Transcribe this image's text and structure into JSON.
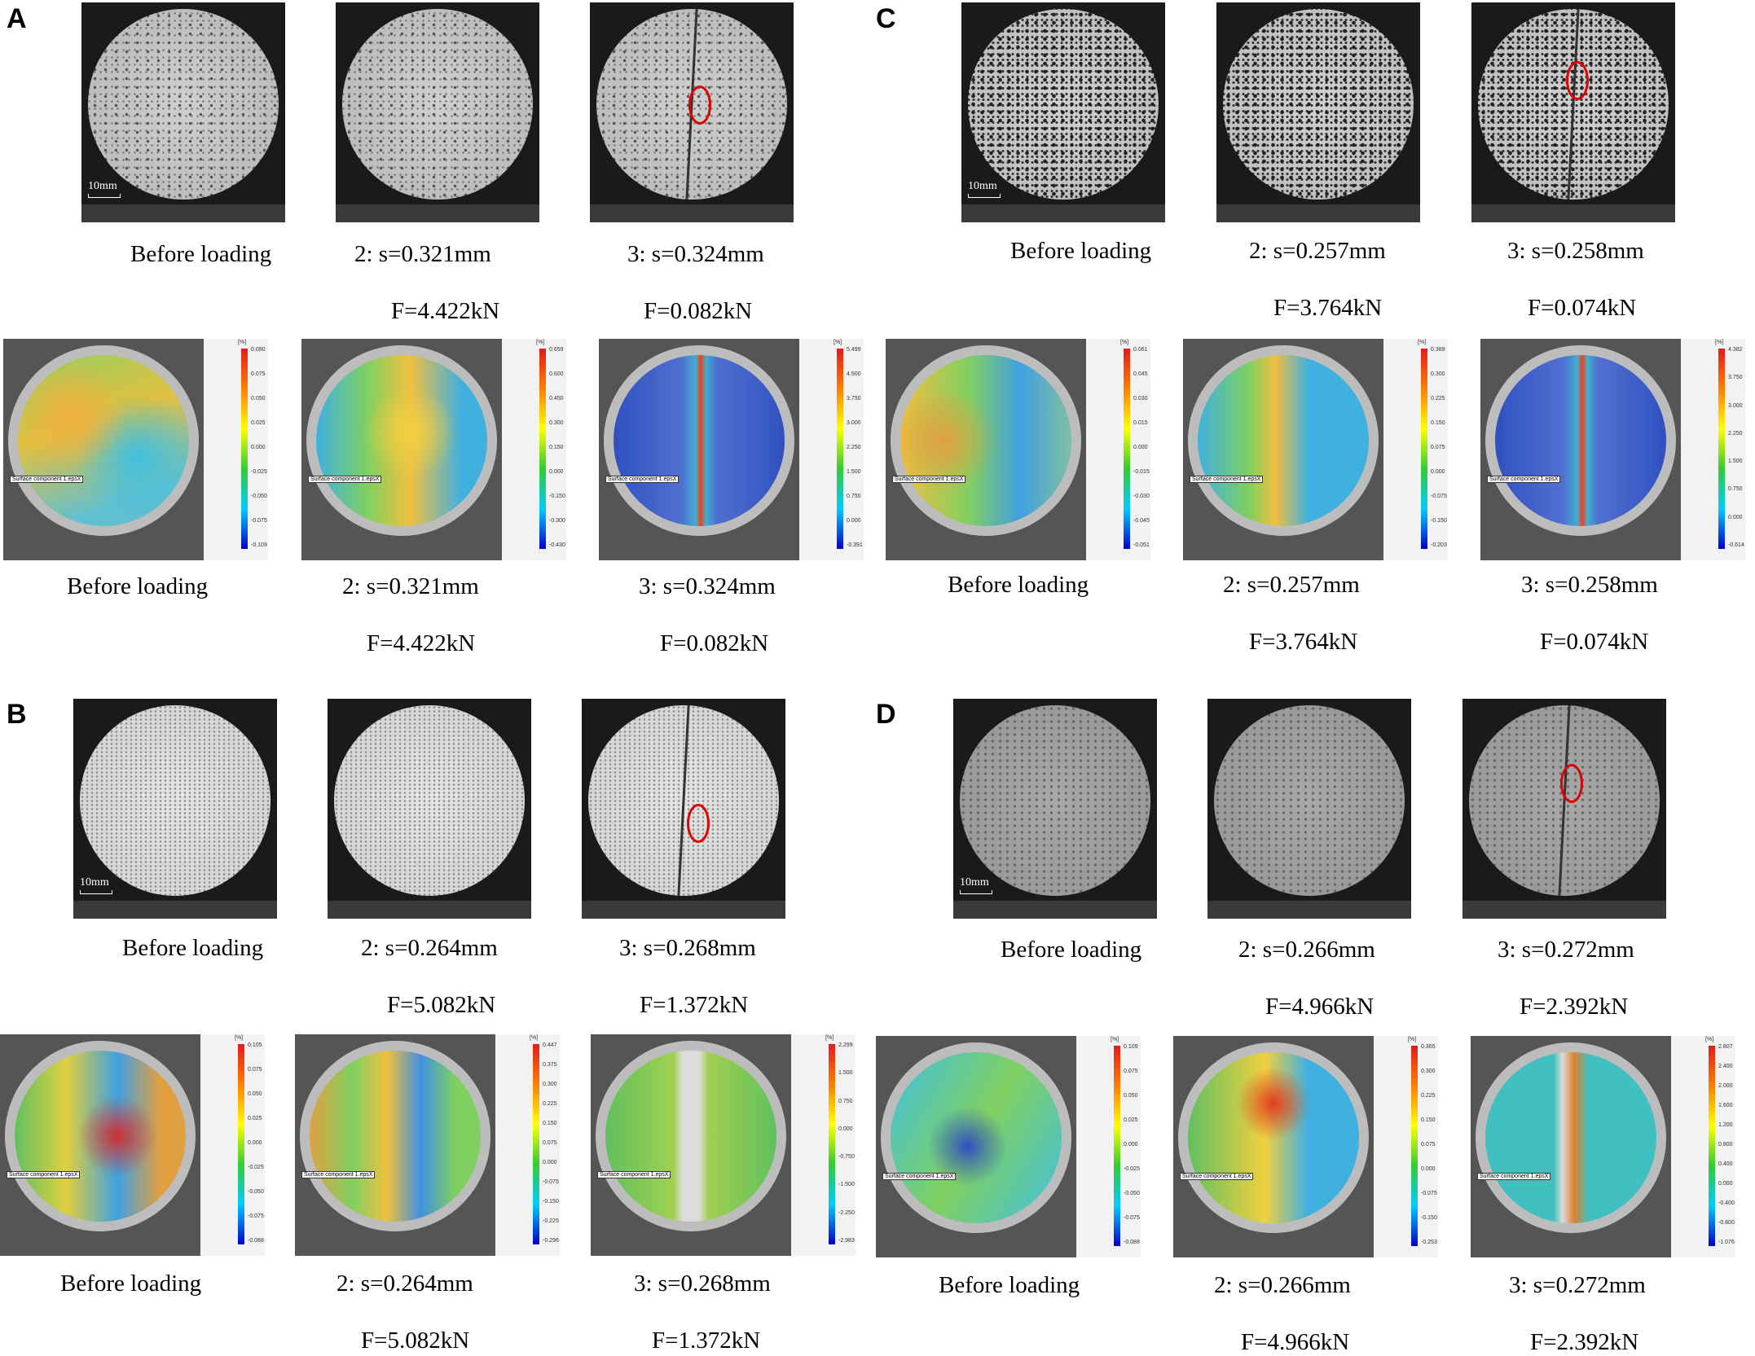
{
  "panels": {
    "A": {
      "letter": "A",
      "scale": "10mm",
      "top_captions": [
        "Before loading",
        "2: s=0.321mm",
        "3: s=0.324mm"
      ],
      "top_forces": [
        "F=4.422kN",
        "F=0.082kN"
      ],
      "bottom_captions": [
        "Before loading",
        "2: s=0.321mm",
        "3: s=0.324mm"
      ],
      "bottom_forces": [
        "F=4.422kN",
        "F=0.082kN"
      ],
      "colorbars": [
        {
          "unit": "[%]",
          "ticks": [
            "0.090",
            "0.075",
            "0.050",
            "0.025",
            "0.000",
            "-0.025",
            "-0.050",
            "-0.075",
            "-0.109"
          ]
        },
        {
          "unit": "[%]",
          "ticks": [
            "0.659",
            "0.600",
            "0.450",
            "0.300",
            "0.150",
            "0.000",
            "-0.150",
            "-0.300",
            "-0.430"
          ]
        },
        {
          "unit": "[%]",
          "ticks": [
            "5.499",
            "4.500",
            "3.750",
            "3.000",
            "2.250",
            "1.500",
            "0.750",
            "0.000",
            "-0.391"
          ]
        }
      ]
    },
    "B": {
      "letter": "B",
      "scale": "10mm",
      "top_captions": [
        "Before loading",
        "2: s=0.264mm",
        "3: s=0.268mm"
      ],
      "top_forces": [
        "F=5.082kN",
        "F=1.372kN"
      ],
      "bottom_captions": [
        "Before loading",
        "2: s=0.264mm",
        "3: s=0.268mm"
      ],
      "bottom_forces": [
        "F=5.082kN",
        "F=1.372kN"
      ],
      "colorbars": [
        {
          "unit": "[%]",
          "ticks": [
            "0.105",
            "0.075",
            "0.050",
            "0.025",
            "0.000",
            "-0.025",
            "-0.050",
            "-0.075",
            "-0.088"
          ]
        },
        {
          "unit": "[%]",
          "ticks": [
            "0.447",
            "0.375",
            "0.300",
            "0.225",
            "0.150",
            "0.075",
            "0.000",
            "-0.075",
            "-0.150",
            "-0.225",
            "-0.296"
          ]
        },
        {
          "unit": "[%]",
          "ticks": [
            "2.299",
            "1.500",
            "0.750",
            "0.000",
            "-0.750",
            "-1.500",
            "-2.250",
            "-2.983"
          ]
        }
      ]
    },
    "C": {
      "letter": "C",
      "scale": "10mm",
      "top_captions": [
        "Before loading",
        "2: s=0.257mm",
        "3: s=0.258mm"
      ],
      "top_forces": [
        "F=3.764kN",
        "F=0.074kN"
      ],
      "bottom_captions": [
        "Before loading",
        "2: s=0.257mm",
        "3: s=0.258mm"
      ],
      "bottom_forces": [
        "F=3.764kN",
        "F=0.074kN"
      ],
      "colorbars": [
        {
          "unit": "[%]",
          "ticks": [
            "0.061",
            "0.045",
            "0.030",
            "0.015",
            "0.000",
            "-0.015",
            "-0.030",
            "-0.045",
            "-0.051"
          ]
        },
        {
          "unit": "[%]",
          "ticks": [
            "0.389",
            "0.300",
            "0.225",
            "0.150",
            "0.075",
            "0.000",
            "-0.075",
            "-0.150",
            "-0.203"
          ]
        },
        {
          "unit": "[%]",
          "ticks": [
            "4.382",
            "3.750",
            "3.000",
            "2.250",
            "1.500",
            "0.750",
            "0.000",
            "-0.614"
          ]
        }
      ]
    },
    "D": {
      "letter": "D",
      "scale": "10mm",
      "top_captions": [
        "Before loading",
        "2: s=0.266mm",
        "3: s=0.272mm"
      ],
      "top_forces": [
        "F=4.966kN",
        "F=2.392kN"
      ],
      "bottom_captions": [
        "Before loading",
        "2: s=0.266mm",
        "3: s=0.272mm"
      ],
      "bottom_forces": [
        "F=4.966kN",
        "F=2.392kN"
      ],
      "colorbars": [
        {
          "unit": "[%]",
          "ticks": [
            "0.109",
            "0.075",
            "0.050",
            "0.025",
            "0.000",
            "-0.025",
            "-0.050",
            "-0.075",
            "-0.088"
          ]
        },
        {
          "unit": "[%]",
          "ticks": [
            "0.365",
            "0.300",
            "0.225",
            "0.150",
            "0.075",
            "0.000",
            "-0.075",
            "-0.150",
            "-0.253"
          ]
        },
        {
          "unit": "[%]",
          "ticks": [
            "2.807",
            "2.400",
            "2.000",
            "1.600",
            "1.200",
            "0.800",
            "0.400",
            "0.000",
            "-0.400",
            "-0.800",
            "-1.076"
          ]
        }
      ]
    }
  },
  "surface_label": "Surface component 1.epsX",
  "crack_marker_color": "#e00000"
}
